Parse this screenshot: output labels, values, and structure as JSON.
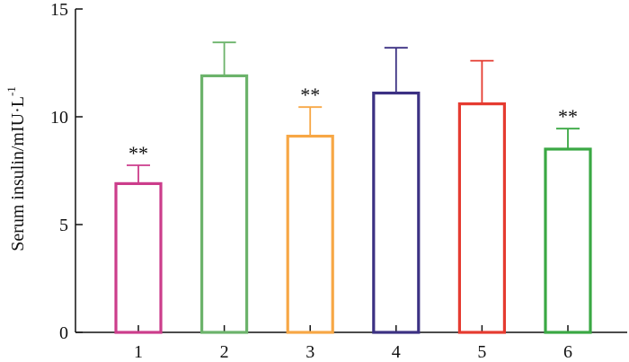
{
  "chart_data": {
    "type": "bar",
    "title": "",
    "xlabel": "",
    "ylabel": "Serum insulin/mIU·L",
    "ylabel_superscript": "-1",
    "ylim": [
      0,
      15
    ],
    "yticks": [
      0,
      5,
      10,
      15
    ],
    "categories": [
      "1",
      "2",
      "3",
      "4",
      "5",
      "6"
    ],
    "values": [
      6.9,
      11.9,
      9.1,
      11.1,
      10.6,
      8.5
    ],
    "errors": [
      0.85,
      1.55,
      1.35,
      2.1,
      2.0,
      0.95
    ],
    "significance": [
      "**",
      "",
      "**",
      "",
      "",
      "**"
    ],
    "colors": [
      "#cc3d8b",
      "#6cb36b",
      "#f7a745",
      "#3c3183",
      "#e53b30",
      "#3aa844"
    ],
    "legend": "none",
    "grid": false
  }
}
